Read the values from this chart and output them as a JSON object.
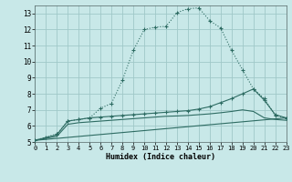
{
  "background_color": "#c8e8e8",
  "grid_color": "#a0c8c8",
  "line_color": "#2d6b62",
  "xlabel": "Humidex (Indice chaleur)",
  "ylim": [
    5,
    13.5
  ],
  "xlim": [
    0,
    23
  ],
  "yticks": [
    5,
    6,
    7,
    8,
    9,
    10,
    11,
    12,
    13
  ],
  "xticks": [
    0,
    1,
    2,
    3,
    4,
    5,
    6,
    7,
    8,
    9,
    10,
    11,
    12,
    13,
    14,
    15,
    16,
    17,
    18,
    19,
    20,
    21,
    22,
    23
  ],
  "curve_main_x": [
    0,
    1,
    2,
    3,
    4,
    5,
    6,
    7,
    8,
    9,
    10,
    11,
    12,
    13,
    14,
    15,
    16,
    17,
    18,
    19,
    20,
    21,
    22,
    23
  ],
  "curve_main_y": [
    5.1,
    5.3,
    5.5,
    6.3,
    6.4,
    6.5,
    7.1,
    7.4,
    8.85,
    10.7,
    12.0,
    12.15,
    12.2,
    13.05,
    13.3,
    13.35,
    12.55,
    12.1,
    10.7,
    9.5,
    8.3,
    7.7,
    6.65,
    6.5
  ],
  "curve2_x": [
    0,
    2,
    3,
    4,
    5,
    6,
    7,
    8,
    9,
    10,
    11,
    12,
    13,
    14,
    15,
    16,
    17,
    18,
    19,
    20,
    21,
    22,
    23
  ],
  "curve2_y": [
    5.1,
    5.45,
    6.3,
    6.4,
    6.5,
    6.55,
    6.6,
    6.65,
    6.7,
    6.75,
    6.8,
    6.85,
    6.9,
    6.95,
    7.05,
    7.2,
    7.45,
    7.7,
    8.0,
    8.3,
    7.6,
    6.7,
    6.5
  ],
  "curve3_x": [
    0,
    2,
    3,
    4,
    5,
    6,
    7,
    8,
    9,
    10,
    11,
    12,
    13,
    14,
    15,
    16,
    17,
    18,
    19,
    20,
    21,
    22,
    23
  ],
  "curve3_y": [
    5.1,
    5.35,
    6.1,
    6.2,
    6.25,
    6.3,
    6.35,
    6.4,
    6.45,
    6.5,
    6.55,
    6.6,
    6.62,
    6.65,
    6.7,
    6.75,
    6.82,
    6.9,
    7.0,
    6.9,
    6.5,
    6.4,
    6.35
  ],
  "curve4_x": [
    0,
    23
  ],
  "curve4_y": [
    5.1,
    6.5
  ]
}
